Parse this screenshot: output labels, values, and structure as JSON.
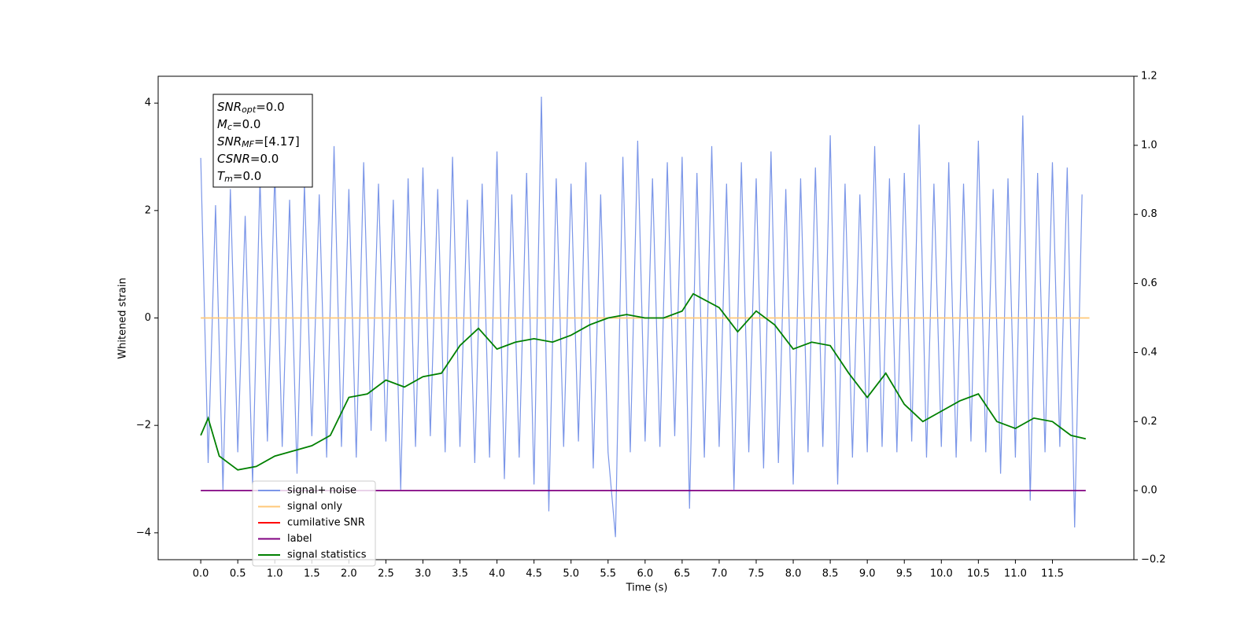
{
  "chart_data": {
    "type": "line",
    "xlabel": "Time (s)",
    "ylabel": "Whitened strain",
    "xlim": [
      -0.575,
      12.6
    ],
    "ylim": [
      -4.5,
      4.5
    ],
    "y2lim": [
      -0.2,
      1.2
    ],
    "xticks": [
      {
        "value": 0,
        "label": "0.0"
      },
      {
        "value": 0.5,
        "label": "0.5"
      },
      {
        "value": 1,
        "label": "1.0"
      },
      {
        "value": 1.5,
        "label": "1.5"
      },
      {
        "value": 2,
        "label": "2.0"
      },
      {
        "value": 2.5,
        "label": "2.5"
      },
      {
        "value": 3,
        "label": "3.0"
      },
      {
        "value": 3.5,
        "label": "3.5"
      },
      {
        "value": 4,
        "label": "4.0"
      },
      {
        "value": 4.5,
        "label": "4.5"
      },
      {
        "value": 5,
        "label": "5.0"
      },
      {
        "value": 5.5,
        "label": "5.5"
      },
      {
        "value": 6,
        "label": "6.0"
      },
      {
        "value": 6.5,
        "label": "6.5"
      },
      {
        "value": 7,
        "label": "7.0"
      },
      {
        "value": 7.5,
        "label": "7.5"
      },
      {
        "value": 8,
        "label": "8.0"
      },
      {
        "value": 8.5,
        "label": "8.5"
      },
      {
        "value": 9,
        "label": "9.0"
      },
      {
        "value": 9.5,
        "label": "9.5"
      },
      {
        "value": 10,
        "label": "10.0"
      },
      {
        "value": 10.5,
        "label": "10.5"
      },
      {
        "value": 11,
        "label": "11.0"
      },
      {
        "value": 11.5,
        "label": "11.5"
      }
    ],
    "yticks": [
      {
        "value": -4,
        "label": "−4"
      },
      {
        "value": -2,
        "label": "−2"
      },
      0,
      2,
      4
    ],
    "y2ticks": [
      {
        "value": -0.2,
        "label": "−0.2"
      },
      {
        "value": 0,
        "label": "0.0"
      },
      0.2,
      0.4,
      0.6,
      0.8,
      {
        "value": 1,
        "label": "1.0"
      },
      1.2
    ],
    "legend": "lower left",
    "annotation": [
      [
        "SNR",
        "opt",
        "=0.0"
      ],
      [
        "M",
        "c",
        "=0.0"
      ],
      [
        "SNR",
        "MF",
        "=[4.17]"
      ],
      [
        "CSNR",
        "",
        "=0.0"
      ],
      [
        "T",
        "m",
        "=0.0"
      ]
    ],
    "series": [
      {
        "name": "signal+ noise",
        "color": "#7b96e8",
        "x": [
          0,
          0.1,
          0.2,
          0.3,
          0.4,
          0.5,
          0.6,
          0.7,
          0.8,
          0.9,
          1,
          1.1,
          1.2,
          1.3,
          1.4,
          1.5,
          1.6,
          1.7,
          1.8,
          1.9,
          2,
          2.1,
          2.2,
          2.3,
          2.4,
          2.5,
          2.6,
          2.7,
          2.8,
          2.9,
          3,
          3.1,
          3.2,
          3.3,
          3.4,
          3.5,
          3.6,
          3.7,
          3.8,
          3.9,
          4,
          4.1,
          4.2,
          4.3,
          4.4,
          4.5,
          4.6,
          4.7,
          4.8,
          4.9,
          5,
          5.1,
          5.2,
          5.3,
          5.4,
          5.5,
          5.6,
          5.7,
          5.8,
          5.9,
          6,
          6.1,
          6.2,
          6.3,
          6.4,
          6.5,
          6.6,
          6.7,
          6.8,
          6.9,
          7,
          7.1,
          7.2,
          7.3,
          7.4,
          7.5,
          7.6,
          7.7,
          7.8,
          7.9,
          8,
          8.1,
          8.2,
          8.3,
          8.4,
          8.5,
          8.6,
          8.7,
          8.8,
          8.9,
          9,
          9.1,
          9.2,
          9.3,
          9.4,
          9.5,
          9.6,
          9.7,
          9.8,
          9.9,
          10,
          10.1,
          10.2,
          10.3,
          10.4,
          10.5,
          10.6,
          10.7,
          10.8,
          10.9,
          11,
          11.1,
          11.2,
          11.3,
          11.4,
          11.5,
          11.6,
          11.7,
          11.8,
          11.9
        ],
        "values": [
          2.98,
          -2.7,
          2.1,
          -3.2,
          2.4,
          -2.5,
          1.9,
          -3.1,
          2.6,
          -2.3,
          2.7,
          -2.4,
          2.2,
          -2.9,
          2.5,
          -2.2,
          2.3,
          -2.6,
          3.2,
          -2.4,
          2.4,
          -2.6,
          2.9,
          -2.1,
          2.5,
          -2.3,
          2.2,
          -3.2,
          2.6,
          -2.4,
          2.8,
          -2.2,
          2.4,
          -2.5,
          3.0,
          -2.4,
          2.2,
          -2.7,
          2.5,
          -2.6,
          3.1,
          -3.0,
          2.3,
          -2.6,
          2.7,
          -3.1,
          4.12,
          -3.6,
          2.6,
          -2.4,
          2.5,
          -2.3,
          2.9,
          -2.8,
          2.3,
          -2.5,
          -4.08,
          3.0,
          -2.5,
          3.3,
          -2.3,
          2.6,
          -2.4,
          2.9,
          -2.2,
          3.0,
          -3.55,
          2.7,
          -2.6,
          3.2,
          -2.4,
          2.5,
          -3.2,
          2.9,
          -2.5,
          2.6,
          -2.8,
          3.1,
          -2.7,
          2.4,
          -3.1,
          2.6,
          -2.5,
          2.8,
          -2.4,
          3.4,
          -3.1,
          2.5,
          -2.6,
          2.3,
          -2.5,
          3.2,
          -2.4,
          2.6,
          -2.5,
          2.7,
          -2.3,
          3.6,
          -2.6,
          2.5,
          -2.4,
          2.9,
          -2.6,
          2.5,
          -2.3,
          3.3,
          -2.5,
          2.4,
          -2.9,
          2.6,
          -2.6,
          3.77,
          -3.4,
          2.7,
          -2.5,
          2.9,
          -2.4,
          2.8,
          -3.9,
          2.3
        ]
      },
      {
        "name": "signal only",
        "color": "#ffc878",
        "x": [
          0,
          12
        ],
        "values": [
          0,
          0
        ]
      },
      {
        "name": "cumilative SNR",
        "color": "#ff0000",
        "x": [],
        "values": []
      },
      {
        "name": "label",
        "color": "#800080",
        "axis": "y2",
        "x": [
          0,
          11.95
        ],
        "values": [
          0,
          0
        ]
      },
      {
        "name": "signal statistics",
        "color": "#008000",
        "axis": "y2",
        "x": [
          0,
          0.1,
          0.25,
          0.5,
          0.75,
          1,
          1.25,
          1.5,
          1.75,
          2,
          2.25,
          2.5,
          2.75,
          3,
          3.25,
          3.5,
          3.75,
          4,
          4.25,
          4.5,
          4.75,
          5,
          5.25,
          5.5,
          5.75,
          6,
          6.25,
          6.5,
          6.65,
          7,
          7.25,
          7.5,
          7.75,
          8,
          8.25,
          8.5,
          8.75,
          9,
          9.25,
          9.5,
          9.75,
          10,
          10.25,
          10.5,
          10.75,
          11,
          11.25,
          11.5,
          11.75,
          11.95
        ],
        "values": [
          0.16,
          0.21,
          0.1,
          0.06,
          0.07,
          0.1,
          0.115,
          0.13,
          0.16,
          0.27,
          0.28,
          0.32,
          0.3,
          0.33,
          0.34,
          0.42,
          0.47,
          0.41,
          0.43,
          0.44,
          0.43,
          0.45,
          0.48,
          0.5,
          0.51,
          0.5,
          0.5,
          0.52,
          0.57,
          0.53,
          0.46,
          0.52,
          0.48,
          0.41,
          0.43,
          0.42,
          0.34,
          0.27,
          0.34,
          0.25,
          0.2,
          0.23,
          0.26,
          0.28,
          0.2,
          0.18,
          0.21,
          0.2,
          0.16,
          0.15
        ]
      }
    ]
  }
}
